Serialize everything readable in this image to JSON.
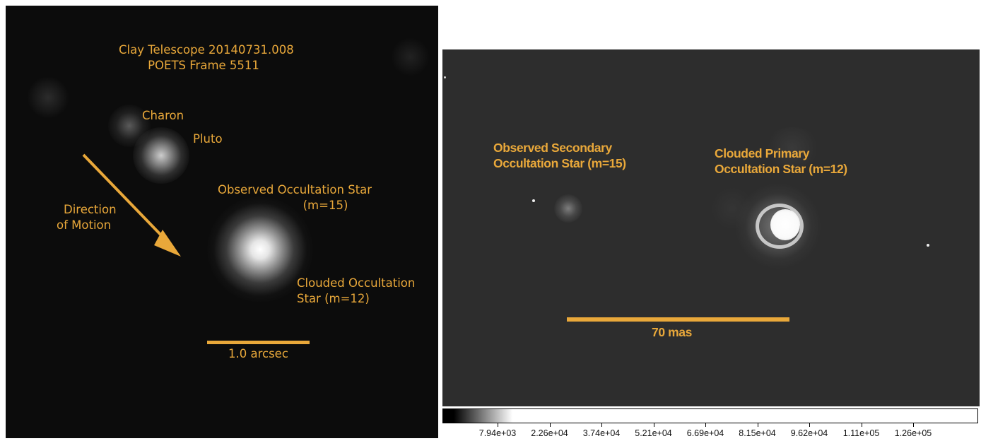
{
  "left_panel": {
    "title_line1": "Clay Telescope 20140731.008",
    "title_line2": "POETS Frame 5511",
    "charon": "Charon",
    "pluto": "Pluto",
    "observed_line1": "Observed Occultation Star",
    "observed_line2": "(m=15)",
    "clouded_line1": "Clouded Occultation",
    "clouded_line2": "Star (m=12)",
    "direction_line1": "Direction",
    "direction_line2": "of Motion",
    "scale_label": "1.0 arcsec"
  },
  "right_panel": {
    "secondary_line1": "Observed Secondary",
    "secondary_line2": "Occultation Star (m=15)",
    "primary_line1": "Clouded Primary",
    "primary_line2": "Occultation Star (m=12)",
    "scale_label": "70 mas"
  },
  "colorbar": {
    "ticks": [
      "7.94e+03",
      "2.26e+04",
      "3.74e+04",
      "5.21e+04",
      "6.69e+04",
      "8.15e+04",
      "9.62e+04",
      "1.11e+05",
      "1.26e+05"
    ]
  },
  "colors": {
    "annotation": "#e9a83a",
    "left_background": "#0c0c0c",
    "right_background": "#2d2d2d"
  }
}
